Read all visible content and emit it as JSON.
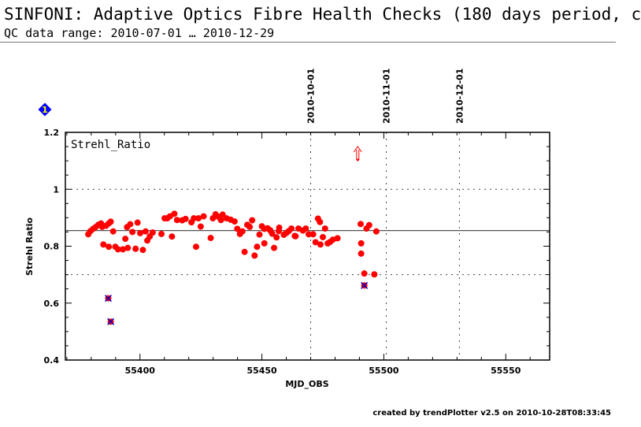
{
  "header": {
    "title": "SINFONI: Adaptive Optics Fibre Health Checks (180 days period, c",
    "subtitle": "QC data range: 2010-07-01 … 2010-12-29"
  },
  "footer": "created by trendPlotter v2.5 on 2010-10-28T08:33:45",
  "badge": {
    "label": "1",
    "color": "#0000ff",
    "text_color": "#ffff00"
  },
  "chart_data": {
    "type": "scatter",
    "panel_label": "Strehl_Ratio",
    "xlabel": "MJD_OBS",
    "ylabel": "Strehl Ratio",
    "xlim": [
      55369.4,
      55568
    ],
    "ylim": [
      0.4,
      1.2
    ],
    "xticks": [
      55400,
      55450,
      55500,
      55550
    ],
    "yticks": [
      0.4,
      0.6,
      0.8,
      1,
      1.2
    ],
    "ytick_labels": [
      "0.4",
      "0.6",
      "0.8",
      "1",
      "1.2"
    ],
    "date_markers": [
      {
        "label": "2010-10-01",
        "x": 55470
      },
      {
        "label": "2010-11-01",
        "x": 55501
      },
      {
        "label": "2010-12-01",
        "x": 55531
      }
    ],
    "reference_lines": {
      "mean": 0.855,
      "thresholds": [
        0.7,
        1.0
      ]
    },
    "colors": {
      "points": "#ff0000",
      "outliers": "#0000cc",
      "mean": "#555555"
    },
    "series": [
      {
        "name": "Strehl_Ratio",
        "points": [
          [
            55378.8,
            0.842
          ],
          [
            55379.7,
            0.853
          ],
          [
            55380.8,
            0.861
          ],
          [
            55381.8,
            0.867
          ],
          [
            55382.9,
            0.875
          ],
          [
            55384,
            0.88
          ],
          [
            55384.5,
            0.868
          ],
          [
            55386.1,
            0.872
          ],
          [
            55387.2,
            0.88
          ],
          [
            55388,
            0.886
          ],
          [
            55389,
            0.852
          ],
          [
            55385,
            0.806
          ],
          [
            55387.2,
            0.798
          ],
          [
            55389.9,
            0.798
          ],
          [
            55391,
            0.789
          ],
          [
            55393,
            0.789
          ],
          [
            55395,
            0.794
          ],
          [
            55394,
            0.826
          ],
          [
            55394.7,
            0.867
          ],
          [
            55396,
            0.877
          ],
          [
            55396.9,
            0.85
          ],
          [
            55398.2,
            0.791
          ],
          [
            55399,
            0.883
          ],
          [
            55400.1,
            0.846
          ],
          [
            55401.2,
            0.787
          ],
          [
            55402.3,
            0.852
          ],
          [
            55403,
            0.82
          ],
          [
            55404,
            0.834
          ],
          [
            55405.2,
            0.848
          ],
          [
            55408.8,
            0.843
          ],
          [
            55410.1,
            0.898
          ],
          [
            55411.2,
            0.898
          ],
          [
            55412.3,
            0.905
          ],
          [
            55413.1,
            0.834
          ],
          [
            55414.1,
            0.914
          ],
          [
            55415.2,
            0.892
          ],
          [
            55417.3,
            0.891
          ],
          [
            55418.7,
            0.896
          ],
          [
            55421.1,
            0.884
          ],
          [
            55422.1,
            0.898
          ],
          [
            55423,
            0.798
          ],
          [
            55424,
            0.898
          ],
          [
            55424.9,
            0.869
          ],
          [
            55426.1,
            0.905
          ],
          [
            55429,
            0.829
          ],
          [
            55429.9,
            0.898
          ],
          [
            55431,
            0.912
          ],
          [
            55432.3,
            0.903
          ],
          [
            55433.2,
            0.892
          ],
          [
            55433.9,
            0.911
          ],
          [
            55435.5,
            0.898
          ],
          [
            55437.2,
            0.893
          ],
          [
            55438.8,
            0.887
          ],
          [
            55439.9,
            0.861
          ],
          [
            55441,
            0.843
          ],
          [
            55442,
            0.852
          ],
          [
            55442.9,
            0.78
          ],
          [
            55444,
            0.875
          ],
          [
            55445,
            0.868
          ],
          [
            55446,
            0.891
          ],
          [
            55447,
            0.767
          ],
          [
            55448,
            0.798
          ],
          [
            55449,
            0.841
          ],
          [
            55450,
            0.87
          ],
          [
            55451,
            0.81
          ],
          [
            55451,
            0.861
          ],
          [
            55452.3,
            0.863
          ],
          [
            55453.4,
            0.856
          ],
          [
            55454.2,
            0.844
          ],
          [
            55455,
            0.794
          ],
          [
            55456,
            0.831
          ],
          [
            55457.1,
            0.865
          ],
          [
            55456.9,
            0.853
          ],
          [
            55459,
            0.84
          ],
          [
            55460.1,
            0.847
          ],
          [
            55461,
            0.853
          ],
          [
            55462.1,
            0.862
          ],
          [
            55463.5,
            0.836
          ],
          [
            55463.8,
            0.835
          ],
          [
            55465,
            0.862
          ],
          [
            55466.8,
            0.855
          ],
          [
            55468,
            0.862
          ],
          [
            55469.2,
            0.842
          ],
          [
            55471,
            0.842
          ],
          [
            55472,
            0.814
          ],
          [
            55473,
            0.897
          ],
          [
            55473.8,
            0.885
          ],
          [
            55474,
            0.806
          ],
          [
            55475,
            0.832
          ],
          [
            55475.9,
            0.862
          ],
          [
            55477,
            0.81
          ],
          [
            55478,
            0.815
          ],
          [
            55479.1,
            0.823
          ],
          [
            55481,
            0.828
          ],
          [
            55490.5,
            0.878
          ],
          [
            55490.7,
            0.81
          ],
          [
            55490.7,
            0.774
          ],
          [
            55492.9,
            0.862
          ],
          [
            55494,
            0.874
          ],
          [
            55492,
            0.704
          ],
          [
            55496.1,
            0.701
          ],
          [
            55496.9,
            0.852
          ]
        ]
      },
      {
        "name": "outliers",
        "points": [
          [
            55387,
            0.617
          ],
          [
            55388,
            0.535
          ],
          [
            55492,
            0.662
          ]
        ]
      }
    ],
    "offscale_markers": [
      {
        "x": 55489.3,
        "direction": "up"
      }
    ]
  }
}
